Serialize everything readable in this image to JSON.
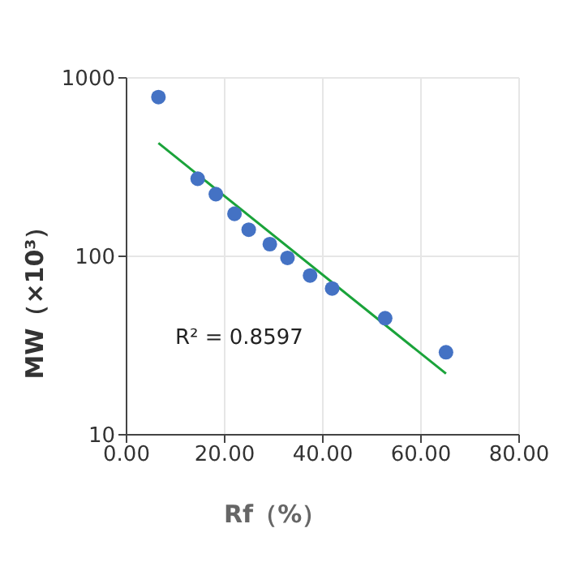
{
  "chart_data": {
    "type": "scatter",
    "xlabel": "Rf（%）",
    "ylabel": "MW（×10³）",
    "log": "y",
    "grid": true,
    "marker": "circle",
    "xlim": [
      0,
      80
    ],
    "xticks": [
      {
        "value": 0,
        "label": "0.00"
      },
      {
        "value": 20,
        "label": "20.00"
      },
      {
        "value": 40,
        "label": "40.00"
      },
      {
        "value": 60,
        "label": "60.00"
      },
      {
        "value": 80,
        "label": "80.00"
      }
    ],
    "ylim": [
      10,
      1000
    ],
    "yticks": [
      10,
      100,
      1000
    ],
    "annotations": [
      "R² = 0.8597"
    ],
    "series": [
      {
        "color": "#4472c4",
        "x": [
          6.5,
          14.5,
          18.2,
          22.0,
          24.9,
          29.2,
          32.8,
          37.4,
          41.9,
          52.7,
          65.1
        ],
        "values": [
          780,
          272,
          223,
          173,
          141,
          117,
          98,
          78,
          66,
          45,
          29
        ]
      },
      {
        "type": "line",
        "marker": "none",
        "color": "#1aa33a",
        "x": [
          6.5,
          65.1
        ],
        "values": [
          431,
          22
        ]
      }
    ]
  }
}
